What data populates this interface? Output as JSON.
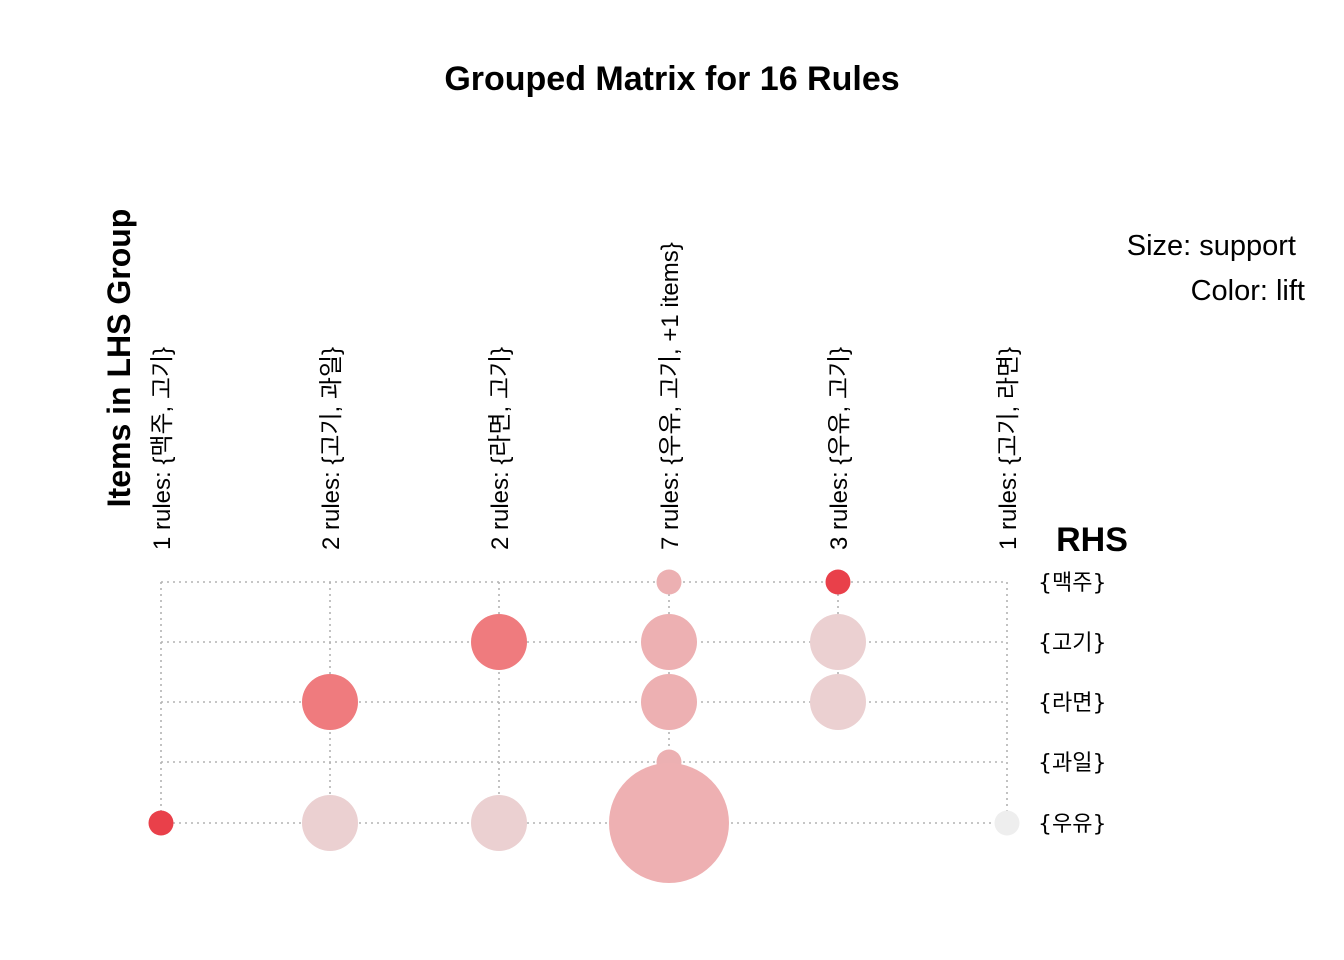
{
  "chart_data": {
    "type": "scatter",
    "title": "Grouped Matrix for 16 Rules",
    "xlabel": "Items in LHS Group",
    "ylabel": "RHS",
    "legend": {
      "size": "Size: support",
      "color": "Color: lift",
      "placement": "top-right"
    },
    "lhs_groups": [
      "1 rules: {맥주, 고기}",
      "2 rules: {고기, 과일}",
      "2 rules: {라면, 고기}",
      "7 rules: {우유, 고기, +1 items}",
      "3 rules: {우유, 고기}",
      "1 rules: {고기, 라면}"
    ],
    "rhs_items": [
      "{맥주}",
      "{고기}",
      "{라면}",
      "{과일}",
      "{우유}"
    ],
    "points": [
      {
        "lhs": 3,
        "rhs": 0,
        "support": 0.04,
        "lift": 1.6,
        "color": "#ECB0B2"
      },
      {
        "lhs": 4,
        "rhs": 0,
        "support": 0.04,
        "lift": 2.4,
        "color": "#E9404A"
      },
      {
        "lhs": 2,
        "rhs": 1,
        "support": 0.2,
        "lift": 2.0,
        "color": "#EF7B7E"
      },
      {
        "lhs": 3,
        "rhs": 1,
        "support": 0.2,
        "lift": 1.5,
        "color": "#EDB0B2"
      },
      {
        "lhs": 4,
        "rhs": 1,
        "support": 0.2,
        "lift": 1.3,
        "color": "#EBD0D1"
      },
      {
        "lhs": 1,
        "rhs": 2,
        "support": 0.2,
        "lift": 2.0,
        "color": "#EF7B7E"
      },
      {
        "lhs": 3,
        "rhs": 2,
        "support": 0.2,
        "lift": 1.5,
        "color": "#EDB0B2"
      },
      {
        "lhs": 4,
        "rhs": 2,
        "support": 0.2,
        "lift": 1.3,
        "color": "#EBD0D1"
      },
      {
        "lhs": 3,
        "rhs": 3,
        "support": 0.04,
        "lift": 1.6,
        "color": "#ECB0B2"
      },
      {
        "lhs": 0,
        "rhs": 4,
        "support": 0.04,
        "lift": 2.4,
        "color": "#E9404A"
      },
      {
        "lhs": 1,
        "rhs": 4,
        "support": 0.2,
        "lift": 1.3,
        "color": "#EBD0D1"
      },
      {
        "lhs": 2,
        "rhs": 4,
        "support": 0.2,
        "lift": 1.3,
        "color": "#EBD0D1"
      },
      {
        "lhs": 3,
        "rhs": 4,
        "support": 0.92,
        "lift": 1.5,
        "color": "#EEB0B2"
      },
      {
        "lhs": 5,
        "rhs": 4,
        "support": 0.04,
        "lift": 1.0,
        "color": "#EEEEEE"
      }
    ]
  }
}
